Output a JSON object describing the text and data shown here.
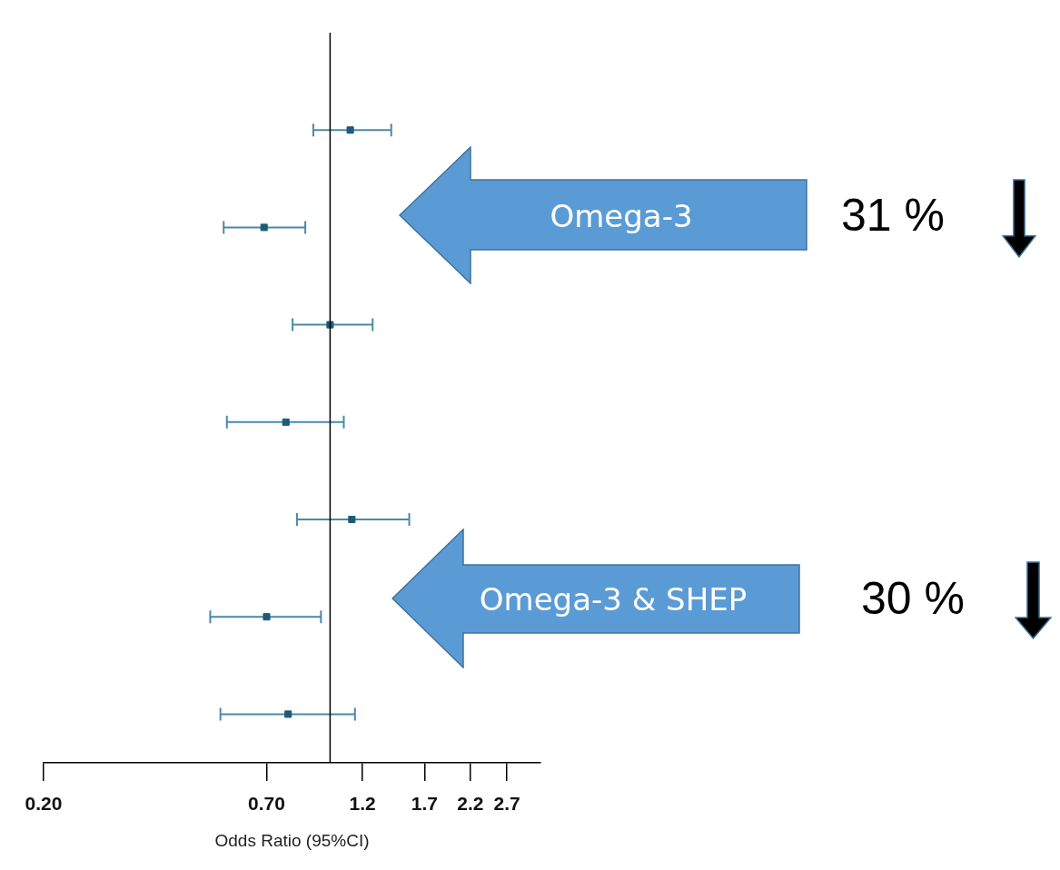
{
  "chart_data": {
    "type": "scatter",
    "orientation": "horizontal",
    "xlabel": "Odds Ratio (95%CI)",
    "categories": [
      null,
      null,
      null,
      null,
      null,
      null,
      null
    ],
    "values": [
      1.12,
      0.69,
      1.0,
      0.78,
      1.13,
      0.7,
      0.79
    ],
    "errors": [
      [
        0.91,
        1.41
      ],
      [
        0.55,
        0.87
      ],
      [
        0.81,
        1.27
      ],
      [
        0.56,
        1.08
      ],
      [
        0.83,
        1.56
      ],
      [
        0.51,
        0.95
      ],
      [
        0.54,
        1.15
      ]
    ],
    "color": "#1c5a78",
    "marker": "square",
    "log": "x",
    "xlim": [
      0.2,
      3.26
    ],
    "xticks": [
      {
        "value": 0.2,
        "label": "0.20"
      },
      {
        "value": 0.7,
        "label": "0.70"
      },
      1.2,
      1.7,
      2.2,
      2.7
    ],
    "ref_lines": [
      {
        "axis": "x",
        "value": 1,
        "color": "#000000"
      }
    ],
    "annotations": [
      "Omega-3",
      "31 %",
      "Omega-3 & SHEP",
      "30 %"
    ],
    "grid": false,
    "legend": false
  }
}
